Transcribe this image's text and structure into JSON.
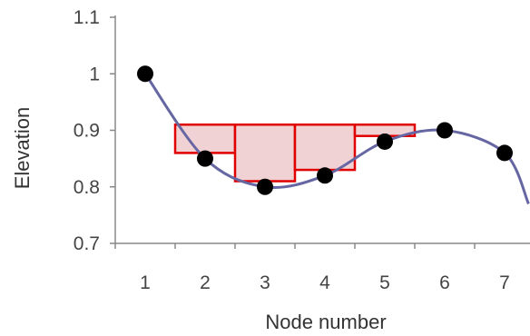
{
  "chart_data": {
    "type": "line",
    "title": "",
    "xlabel": "Node number",
    "ylabel": "Elevation",
    "ylim": [
      0.7,
      1.1
    ],
    "yticks": [
      "0.7",
      "0.8",
      "0.9",
      "1",
      "1.1"
    ],
    "xticks": [
      "1",
      "2",
      "3",
      "4",
      "5",
      "6",
      "7"
    ],
    "grid": false,
    "colors": {
      "line": "#6666a3",
      "marker": "#000000",
      "bar_edge": "#e00000",
      "bar_fill": "#f1d2d4"
    },
    "series": [
      {
        "x": [
          1,
          2,
          3,
          4,
          5,
          6,
          7,
          7.4
        ],
        "y": [
          1.0,
          0.85,
          0.8,
          0.82,
          0.88,
          0.9,
          0.86,
          0.77
        ],
        "markers": [
          true,
          true,
          true,
          true,
          true,
          true,
          true,
          false
        ]
      }
    ],
    "boxes": [
      {
        "x0": 1.5,
        "x1": 2.5,
        "bottom": 0.86,
        "top": 0.91
      },
      {
        "x0": 2.5,
        "x1": 3.5,
        "bottom": 0.81,
        "top": 0.91
      },
      {
        "x0": 3.5,
        "x1": 4.5,
        "bottom": 0.83,
        "top": 0.91
      },
      {
        "x0": 4.5,
        "x1": 5.5,
        "bottom": 0.89,
        "top": 0.91
      }
    ]
  }
}
